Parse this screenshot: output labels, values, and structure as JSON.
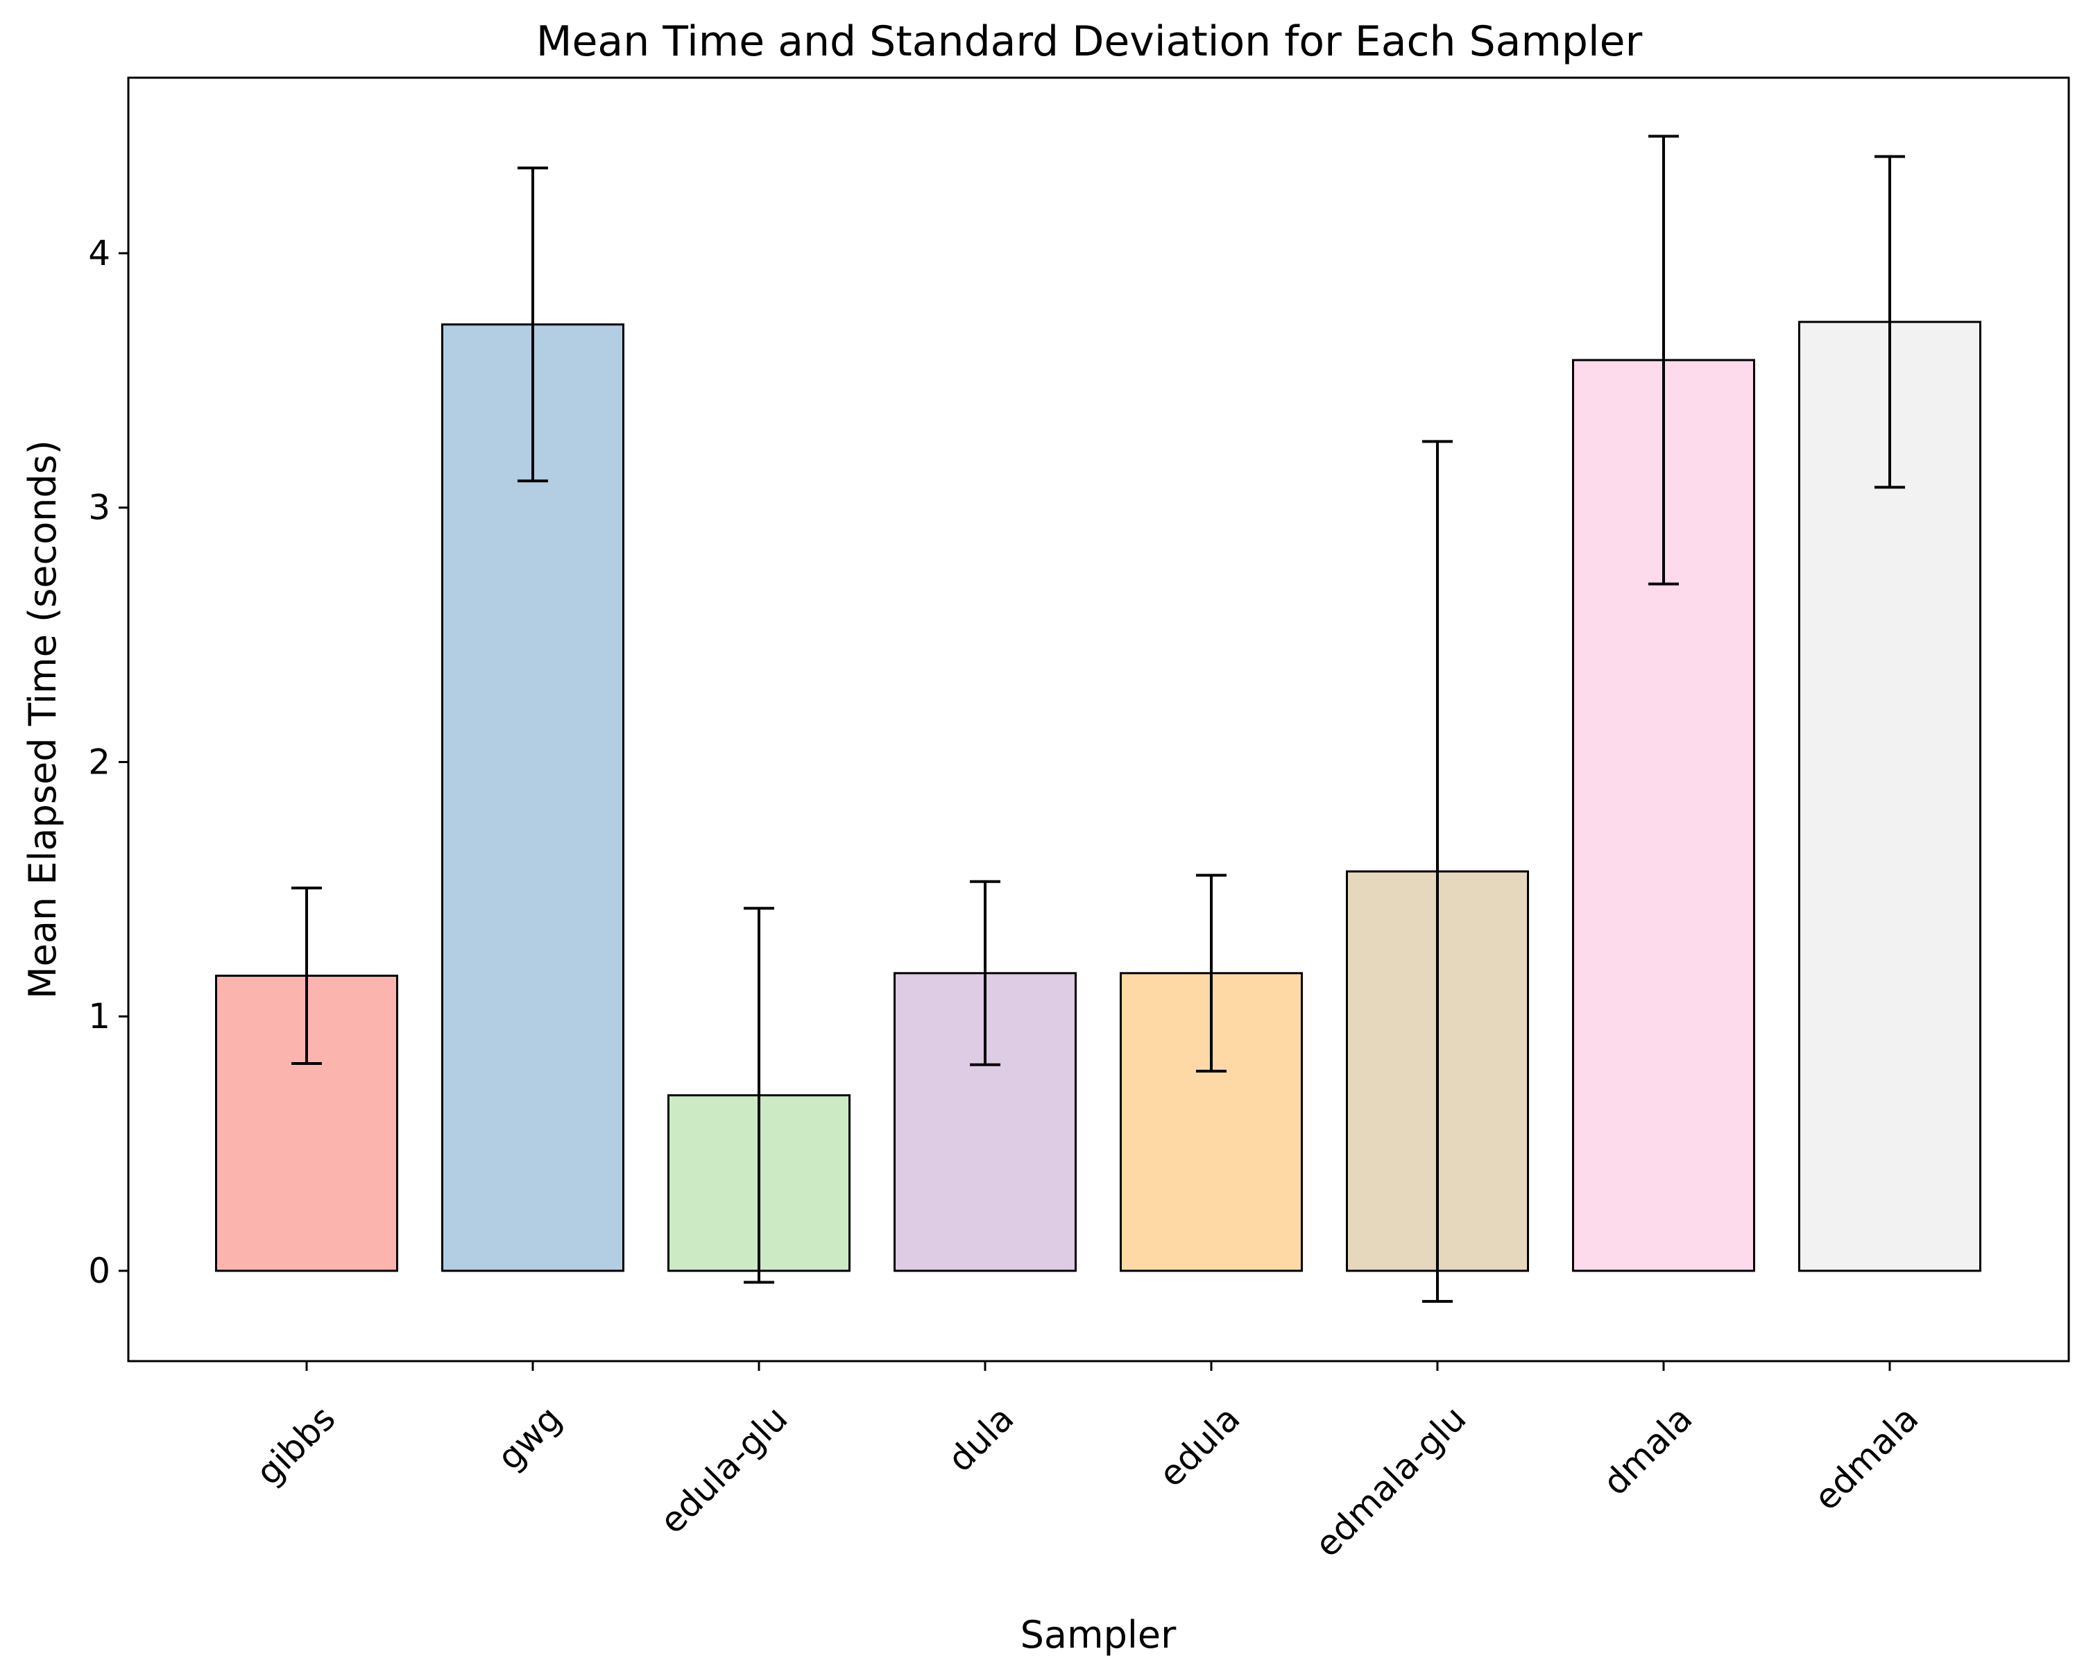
{
  "chart_data": {
    "type": "bar",
    "title": "Mean Time and Standard Deviation for Each Sampler",
    "xlabel": "Sampler",
    "ylabel": "Mean Elapsed Time (seconds)",
    "categories": [
      "gibbs",
      "gwg",
      "edula-glu",
      "dula",
      "edula",
      "edmala-glu",
      "dmala",
      "edmala"
    ],
    "values": [
      1.16,
      3.72,
      0.69,
      1.17,
      1.17,
      1.57,
      3.58,
      3.73
    ],
    "errors": [
      0.345,
      0.615,
      0.735,
      0.36,
      0.385,
      1.69,
      0.88,
      0.65
    ],
    "colors": [
      "#fbb4ae",
      "#b3cde3",
      "#ccebc5",
      "#decbe4",
      "#fed9a6",
      "#e5d8bd",
      "#fddaec",
      "#f2f2f2"
    ],
    "ylim": [
      -0.355,
      4.69
    ],
    "yticks": [
      0,
      1,
      2,
      3,
      4
    ],
    "grid": false,
    "legend": "none"
  }
}
